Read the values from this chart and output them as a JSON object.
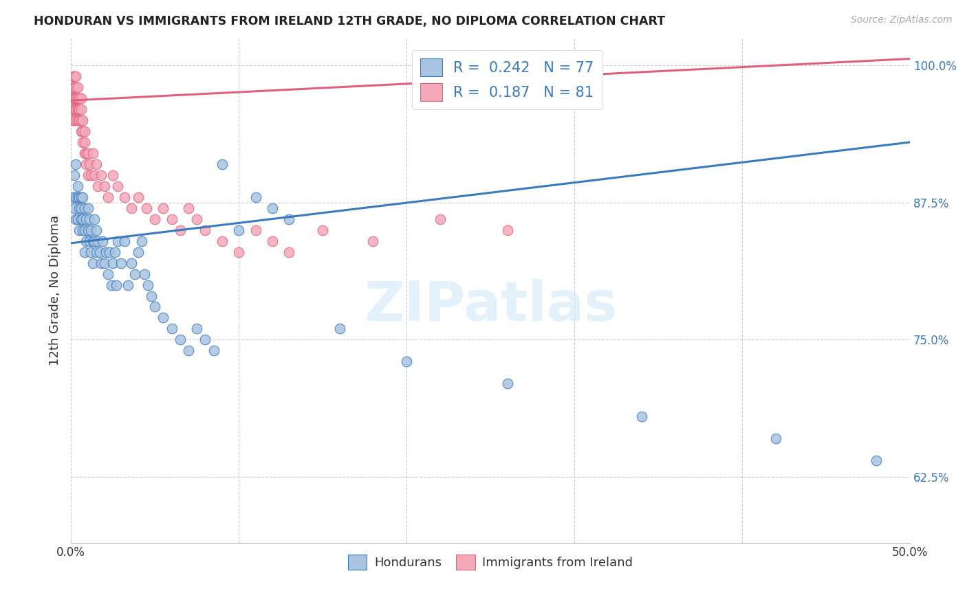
{
  "title": "HONDURAN VS IMMIGRANTS FROM IRELAND 12TH GRADE, NO DIPLOMA CORRELATION CHART",
  "source": "Source: ZipAtlas.com",
  "ylabel": "12th Grade, No Diploma",
  "xlim": [
    0.0,
    0.5
  ],
  "ylim": [
    0.565,
    1.025
  ],
  "xticks": [
    0.0,
    0.1,
    0.2,
    0.3,
    0.4,
    0.5
  ],
  "xtick_labels": [
    "0.0%",
    "",
    "",
    "",
    "",
    "50.0%"
  ],
  "yticks": [
    0.625,
    0.75,
    0.875,
    1.0
  ],
  "ytick_labels": [
    "62.5%",
    "75.0%",
    "87.5%",
    "100.0%"
  ],
  "legend_R1": "0.242",
  "legend_N1": "77",
  "legend_R2": "0.187",
  "legend_N2": "81",
  "blue_color": "#a8c4e0",
  "pink_color": "#f4a8b8",
  "blue_line_color": "#3a7abf",
  "pink_line_color": "#e06080",
  "watermark": "ZIPatlas",
  "blue_scatter_x": [
    0.001,
    0.002,
    0.002,
    0.003,
    0.003,
    0.003,
    0.004,
    0.004,
    0.004,
    0.005,
    0.005,
    0.005,
    0.006,
    0.006,
    0.006,
    0.007,
    0.007,
    0.007,
    0.008,
    0.008,
    0.008,
    0.009,
    0.009,
    0.01,
    0.01,
    0.011,
    0.011,
    0.012,
    0.012,
    0.013,
    0.013,
    0.014,
    0.014,
    0.015,
    0.015,
    0.016,
    0.017,
    0.018,
    0.019,
    0.02,
    0.021,
    0.022,
    0.023,
    0.024,
    0.025,
    0.026,
    0.027,
    0.028,
    0.03,
    0.032,
    0.034,
    0.036,
    0.038,
    0.04,
    0.042,
    0.044,
    0.046,
    0.048,
    0.05,
    0.055,
    0.06,
    0.065,
    0.07,
    0.075,
    0.08,
    0.085,
    0.09,
    0.1,
    0.11,
    0.12,
    0.13,
    0.16,
    0.2,
    0.26,
    0.34,
    0.42,
    0.48
  ],
  "blue_scatter_y": [
    0.88,
    0.87,
    0.9,
    0.88,
    0.86,
    0.91,
    0.88,
    0.86,
    0.89,
    0.87,
    0.85,
    0.88,
    0.86,
    0.88,
    0.87,
    0.85,
    0.88,
    0.86,
    0.87,
    0.85,
    0.83,
    0.86,
    0.84,
    0.85,
    0.87,
    0.84,
    0.86,
    0.83,
    0.85,
    0.84,
    0.82,
    0.84,
    0.86,
    0.83,
    0.85,
    0.84,
    0.83,
    0.82,
    0.84,
    0.82,
    0.83,
    0.81,
    0.83,
    0.8,
    0.82,
    0.83,
    0.8,
    0.84,
    0.82,
    0.84,
    0.8,
    0.82,
    0.81,
    0.83,
    0.84,
    0.81,
    0.8,
    0.79,
    0.78,
    0.77,
    0.76,
    0.75,
    0.74,
    0.76,
    0.75,
    0.74,
    0.91,
    0.85,
    0.88,
    0.87,
    0.86,
    0.76,
    0.73,
    0.71,
    0.68,
    0.66,
    0.64
  ],
  "pink_scatter_x": [
    0.001,
    0.001,
    0.001,
    0.001,
    0.001,
    0.001,
    0.001,
    0.001,
    0.002,
    0.002,
    0.002,
    0.002,
    0.002,
    0.002,
    0.002,
    0.002,
    0.002,
    0.003,
    0.003,
    0.003,
    0.003,
    0.003,
    0.003,
    0.003,
    0.003,
    0.004,
    0.004,
    0.004,
    0.004,
    0.004,
    0.004,
    0.005,
    0.005,
    0.005,
    0.005,
    0.005,
    0.006,
    0.006,
    0.006,
    0.006,
    0.007,
    0.007,
    0.007,
    0.008,
    0.008,
    0.008,
    0.009,
    0.009,
    0.01,
    0.01,
    0.011,
    0.012,
    0.013,
    0.014,
    0.015,
    0.016,
    0.018,
    0.02,
    0.022,
    0.025,
    0.028,
    0.032,
    0.036,
    0.04,
    0.045,
    0.05,
    0.055,
    0.06,
    0.065,
    0.07,
    0.075,
    0.08,
    0.09,
    0.1,
    0.11,
    0.12,
    0.13,
    0.15,
    0.18,
    0.22,
    0.26
  ],
  "pink_scatter_y": [
    0.97,
    0.96,
    0.98,
    0.95,
    0.97,
    0.99,
    0.96,
    0.98,
    0.97,
    0.98,
    0.96,
    0.95,
    0.97,
    0.99,
    0.96,
    0.97,
    0.98,
    0.97,
    0.96,
    0.95,
    0.98,
    0.97,
    0.96,
    0.99,
    0.97,
    0.96,
    0.95,
    0.97,
    0.98,
    0.96,
    0.97,
    0.95,
    0.96,
    0.97,
    0.95,
    0.96,
    0.94,
    0.96,
    0.95,
    0.97,
    0.93,
    0.95,
    0.94,
    0.92,
    0.94,
    0.93,
    0.92,
    0.91,
    0.9,
    0.92,
    0.91,
    0.9,
    0.92,
    0.9,
    0.91,
    0.89,
    0.9,
    0.89,
    0.88,
    0.9,
    0.89,
    0.88,
    0.87,
    0.88,
    0.87,
    0.86,
    0.87,
    0.86,
    0.85,
    0.87,
    0.86,
    0.85,
    0.84,
    0.83,
    0.85,
    0.84,
    0.83,
    0.85,
    0.84,
    0.86,
    0.85
  ],
  "blue_line_x0": 0.0,
  "blue_line_x1": 0.5,
  "blue_line_y0": 0.838,
  "blue_line_y1": 0.93,
  "pink_line_x0": 0.0,
  "pink_line_x1": 0.5,
  "pink_line_y0": 0.968,
  "pink_line_y1": 1.006
}
